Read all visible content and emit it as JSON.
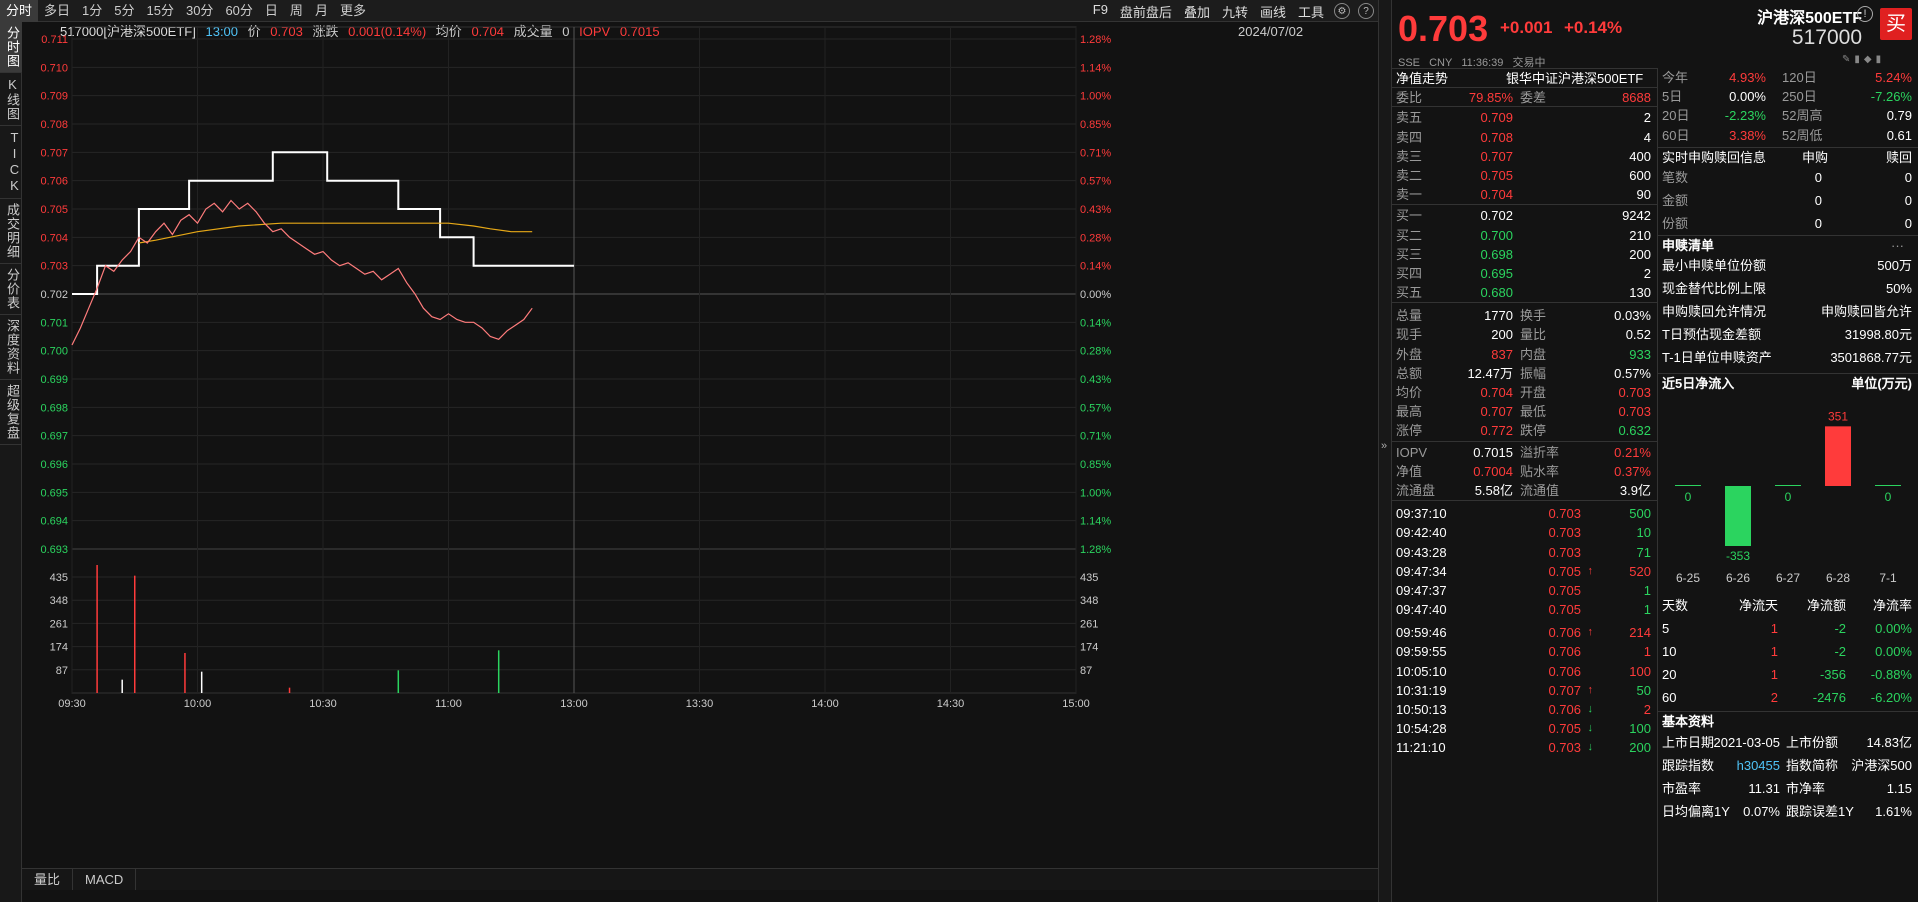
{
  "period_tabs": [
    "分时",
    "多日",
    "1分",
    "5分",
    "15分",
    "30分",
    "60分",
    "日",
    "周",
    "月",
    "更多"
  ],
  "toolbar_right": [
    "F9",
    "盘前盘后",
    "叠加",
    "九转",
    "画线",
    "工具"
  ],
  "sidebar_tabs": [
    "分时图",
    "K线图",
    "TICK",
    "成交明细",
    "分价表",
    "深度资料",
    "超级复盘"
  ],
  "info_line": {
    "code_name": "517000[沪港深500ETF]",
    "time": "13:00",
    "price_label": "价",
    "price": "0.703",
    "chg_label": "涨跌",
    "chg": "0.001(0.14%)",
    "avg_label": "均价",
    "avg": "0.704",
    "vol_label": "成交量",
    "vol": "0",
    "iopv_label": "IOPV",
    "iopv": "0.7015"
  },
  "date": "2024/07/02",
  "bottom_tabs": [
    "量比",
    "MACD"
  ],
  "price_axis": [
    "0.711",
    "0.710",
    "0.709",
    "0.708",
    "0.707",
    "0.706",
    "0.705",
    "0.704",
    "0.703",
    "0.702",
    "0.701",
    "0.700",
    "0.699",
    "0.698",
    "0.697",
    "0.696",
    "0.695",
    "0.694",
    "0.693"
  ],
  "pct_axis": [
    "1.28%",
    "1.14%",
    "1.00%",
    "0.85%",
    "0.71%",
    "0.57%",
    "0.43%",
    "0.28%",
    "0.14%",
    "0.00%",
    "0.14%",
    "0.28%",
    "0.43%",
    "0.57%",
    "0.71%",
    "0.85%",
    "1.00%",
    "1.14%",
    "1.28%"
  ],
  "volume_axis": [
    "435",
    "348",
    "261",
    "174",
    "87"
  ],
  "time_axis": [
    "09:30",
    "10:00",
    "10:30",
    "11:00",
    "13:00",
    "13:30",
    "14:00",
    "14:30",
    "15:00"
  ],
  "header": {
    "price": "0.703",
    "change": "+0.001",
    "pct": "+0.14%",
    "name": "沪港深500ETF",
    "code": "517000",
    "exchange": "SSE",
    "currency": "CNY",
    "time": "11:36:39",
    "status": "交易中",
    "buy": "买"
  },
  "nav_row": {
    "label": "净值走势",
    "index": "银华中证沪港深500ETF"
  },
  "weibi": {
    "l1": "委比",
    "v1": "79.85%",
    "l2": "委差",
    "v2": "8688"
  },
  "asks": [
    {
      "label": "卖五",
      "price": "0.709",
      "vol": "2"
    },
    {
      "label": "卖四",
      "price": "0.708",
      "vol": "4"
    },
    {
      "label": "卖三",
      "price": "0.707",
      "vol": "400"
    },
    {
      "label": "卖二",
      "price": "0.705",
      "vol": "600"
    },
    {
      "label": "卖一",
      "price": "0.704",
      "vol": "90"
    }
  ],
  "bids": [
    {
      "label": "买一",
      "price": "0.702",
      "vol": "9242",
      "color": "white"
    },
    {
      "label": "买二",
      "price": "0.700",
      "vol": "210",
      "color": "green"
    },
    {
      "label": "买三",
      "price": "0.698",
      "vol": "200",
      "color": "green"
    },
    {
      "label": "买四",
      "price": "0.695",
      "vol": "2",
      "color": "green"
    },
    {
      "label": "买五",
      "price": "0.680",
      "vol": "130",
      "color": "green"
    }
  ],
  "stats": [
    {
      "l1": "总量",
      "v1": "1770",
      "c1": "white",
      "l2": "换手",
      "v2": "0.03%",
      "c2": "white"
    },
    {
      "l1": "现手",
      "v1": "200",
      "c1": "white",
      "l2": "量比",
      "v2": "0.52",
      "c2": "white"
    },
    {
      "l1": "外盘",
      "v1": "837",
      "c1": "red",
      "l2": "内盘",
      "v2": "933",
      "c2": "green"
    },
    {
      "l1": "总额",
      "v1": "12.47万",
      "c1": "white",
      "l2": "振幅",
      "v2": "0.57%",
      "c2": "white"
    },
    {
      "l1": "均价",
      "v1": "0.704",
      "c1": "red",
      "l2": "开盘",
      "v2": "0.703",
      "c2": "red"
    },
    {
      "l1": "最高",
      "v1": "0.707",
      "c1": "red",
      "l2": "最低",
      "v2": "0.703",
      "c2": "red"
    },
    {
      "l1": "涨停",
      "v1": "0.772",
      "c1": "red",
      "l2": "跌停",
      "v2": "0.632",
      "c2": "green"
    }
  ],
  "stats2": [
    {
      "l1": "IOPV",
      "v1": "0.7015",
      "c1": "white",
      "l2": "溢折率",
      "v2": "0.21%",
      "c2": "red"
    },
    {
      "l1": "净值",
      "v1": "0.7004",
      "c1": "red",
      "l2": "贴水率",
      "v2": "0.37%",
      "c2": "red"
    },
    {
      "l1": "流通盘",
      "v1": "5.58亿",
      "c1": "white",
      "l2": "流通值",
      "v2": "3.9亿",
      "c2": "white"
    }
  ],
  "trades": [
    {
      "time": "09:37:10",
      "price": "0.703",
      "arrow": "",
      "vol": "500",
      "vcolor": "green",
      "gap": false
    },
    {
      "time": "09:42:40",
      "price": "0.703",
      "arrow": "",
      "vol": "10",
      "vcolor": "green",
      "gap": false
    },
    {
      "time": "09:43:28",
      "price": "0.703",
      "arrow": "",
      "vol": "71",
      "vcolor": "green",
      "gap": false
    },
    {
      "time": "09:47:34",
      "price": "0.705",
      "arrow": "↑",
      "vol": "520",
      "vcolor": "red",
      "gap": false
    },
    {
      "time": "09:47:37",
      "price": "0.705",
      "arrow": "",
      "vol": "1",
      "vcolor": "green",
      "gap": false
    },
    {
      "time": "09:47:40",
      "price": "0.705",
      "arrow": "",
      "vol": "1",
      "vcolor": "green",
      "gap": false
    },
    {
      "time": "09:59:46",
      "price": "0.706",
      "arrow": "↑",
      "vol": "214",
      "vcolor": "red",
      "gap": true
    },
    {
      "time": "09:59:55",
      "price": "0.706",
      "arrow": "",
      "vol": "1",
      "vcolor": "red",
      "gap": false
    },
    {
      "time": "10:05:10",
      "price": "0.706",
      "arrow": "",
      "vol": "100",
      "vcolor": "red",
      "gap": false
    },
    {
      "time": "10:31:19",
      "price": "0.707",
      "arrow": "↑",
      "vol": "50",
      "vcolor": "green",
      "gap": false
    },
    {
      "time": "10:50:13",
      "price": "0.706",
      "arrow": "↓",
      "vol": "2",
      "vcolor": "red",
      "gap": false
    },
    {
      "time": "10:54:28",
      "price": "0.705",
      "arrow": "↓",
      "vol": "100",
      "vcolor": "green",
      "gap": false
    },
    {
      "time": "11:21:10",
      "price": "0.703",
      "arrow": "↓",
      "vol": "200",
      "vcolor": "green",
      "gap": false
    }
  ],
  "perf": [
    {
      "l1": "今年",
      "v1": "4.93%",
      "c1": "red",
      "l2": "120日",
      "v2": "5.24%",
      "c2": "red"
    },
    {
      "l1": "5日",
      "v1": "0.00%",
      "c1": "white",
      "l2": "250日",
      "v2": "-7.26%",
      "c2": "green"
    },
    {
      "l1": "20日",
      "v1": "-2.23%",
      "c1": "green",
      "l2": "52周高",
      "v2": "0.79",
      "c2": "white"
    },
    {
      "l1": "60日",
      "v1": "3.38%",
      "c1": "red",
      "l2": "52周低",
      "v2": "0.61",
      "c2": "white"
    }
  ],
  "redemption": {
    "title": "实时申购赎回信息",
    "h1": "申购",
    "h2": "赎回",
    "rows": [
      {
        "label": "笔数",
        "a": "0",
        "b": "0"
      },
      {
        "label": "金额",
        "a": "0",
        "b": "0"
      },
      {
        "label": "份额",
        "a": "0",
        "b": "0"
      }
    ]
  },
  "subscription": {
    "title": "申赎清单",
    "more": "···",
    "rows": [
      {
        "label": "最小申赎单位份额",
        "value": "500万"
      },
      {
        "label": "现金替代比例上限",
        "value": "50%"
      },
      {
        "label": "申购赎回允许情况",
        "value": "申购赎回皆允许"
      },
      {
        "label": "T日预估现金差额",
        "value": "31998.80元"
      },
      {
        "label": "T-1日单位申赎资产",
        "value": "3501868.77元"
      }
    ]
  },
  "inflow": {
    "title": "近5日净流入",
    "unit": "单位(万元)",
    "dates": [
      "6-25",
      "6-26",
      "6-27",
      "6-28",
      "7-1"
    ],
    "values": [
      0,
      -353,
      0,
      351,
      0
    ]
  },
  "flow_table": {
    "headers": [
      "天数",
      "净流天",
      "净流额",
      "净流率"
    ],
    "rows": [
      {
        "d": "5",
        "days": "1",
        "amt": "-2",
        "rate": "0.00%",
        "rc": "green"
      },
      {
        "d": "10",
        "days": "1",
        "amt": "-2",
        "rate": "0.00%",
        "rc": "green"
      },
      {
        "d": "20",
        "days": "1",
        "amt": "-356",
        "rate": "-0.88%",
        "rc": "green"
      },
      {
        "d": "60",
        "days": "2",
        "amt": "-2476",
        "rate": "-6.20%",
        "rc": "green"
      }
    ]
  },
  "basic": {
    "title": "基本资料",
    "rows": [
      {
        "l1": "上市日期",
        "v1": "2021-03-05",
        "c1": "white",
        "l2": "上市份额",
        "v2": "14.83亿",
        "c2": "white"
      },
      {
        "l1": "跟踪指数",
        "v1": "h30455",
        "c1": "cyan",
        "l2": "指数简称",
        "v2": "沪港深500",
        "c2": "white"
      },
      {
        "l1": "市盈率",
        "v1": "11.31",
        "c1": "white",
        "l2": "市净率",
        "v2": "1.15",
        "c2": "white"
      },
      {
        "l1": "日均偏离1Y",
        "v1": "0.07%",
        "c1": "white",
        "l2": "跟踪误差1Y",
        "v2": "1.61%",
        "c2": "white"
      }
    ]
  },
  "chart_data": {
    "type": "line",
    "title": "",
    "prev_close": 0.702,
    "price_range": [
      0.693,
      0.711
    ],
    "volume_range": [
      0,
      435
    ],
    "series": [
      {
        "name": "价",
        "color": "#ffffff",
        "x": [
          0,
          6,
          6,
          16,
          16,
          28,
          28,
          48,
          48,
          61,
          61,
          78,
          78,
          88,
          88,
          96,
          96,
          110,
          110,
          120
        ],
        "values": [
          0.702,
          0.702,
          0.703,
          0.703,
          0.705,
          0.705,
          0.706,
          0.706,
          0.707,
          0.707,
          0.706,
          0.706,
          0.705,
          0.705,
          0.704,
          0.704,
          0.703,
          0.703,
          0.703,
          0.703
        ]
      },
      {
        "name": "均价",
        "color": "#e6a817",
        "x": [
          16,
          20,
          30,
          40,
          50,
          60,
          70,
          80,
          90,
          96,
          100,
          105,
          110
        ],
        "values": [
          0.7038,
          0.7039,
          0.7042,
          0.7044,
          0.7045,
          0.7045,
          0.7045,
          0.7045,
          0.7045,
          0.7044,
          0.7043,
          0.7042,
          0.7042
        ]
      },
      {
        "name": "IOPV",
        "color": "#ff7c7c",
        "x": [
          0,
          2,
          4,
          6,
          8,
          10,
          12,
          14,
          16,
          18,
          20,
          22,
          24,
          26,
          28,
          30,
          32,
          34,
          36,
          38,
          40,
          42,
          44,
          46,
          48,
          50,
          52,
          54,
          56,
          58,
          60,
          62,
          64,
          66,
          68,
          70,
          72,
          74,
          76,
          78,
          80,
          82,
          84,
          86,
          88,
          90,
          92,
          94,
          96,
          98,
          100,
          102,
          104,
          106,
          108,
          110
        ],
        "values": [
          0.7002,
          0.7008,
          0.7015,
          0.7022,
          0.703,
          0.7028,
          0.7032,
          0.7035,
          0.704,
          0.7038,
          0.7042,
          0.7045,
          0.7041,
          0.7046,
          0.7048,
          0.7045,
          0.705,
          0.7052,
          0.7049,
          0.7053,
          0.705,
          0.7052,
          0.7049,
          0.7045,
          0.7042,
          0.7043,
          0.704,
          0.7038,
          0.7036,
          0.7034,
          0.7035,
          0.7032,
          0.703,
          0.7031,
          0.7029,
          0.7027,
          0.7028,
          0.7025,
          0.7027,
          0.7029,
          0.7024,
          0.702,
          0.7015,
          0.7012,
          0.7011,
          0.7013,
          0.7011,
          0.701,
          0.701,
          0.7008,
          0.7005,
          0.7004,
          0.7007,
          0.7009,
          0.7011,
          0.7015
        ]
      }
    ],
    "volumes": [
      {
        "x": 6,
        "v": 480,
        "c": "red"
      },
      {
        "x": 15,
        "v": 440,
        "c": "red"
      },
      {
        "x": 27,
        "v": 150,
        "c": "red"
      },
      {
        "x": 31,
        "v": 80,
        "c": "white"
      },
      {
        "x": 12,
        "v": 50,
        "c": "white"
      },
      {
        "x": 52,
        "v": 20,
        "c": "red"
      },
      {
        "x": 78,
        "v": 85,
        "c": "green"
      },
      {
        "x": 102,
        "v": 160,
        "c": "green"
      }
    ],
    "x_unit": "minutes since 09:30 (trading minutes, 240 total)",
    "grid": true
  }
}
